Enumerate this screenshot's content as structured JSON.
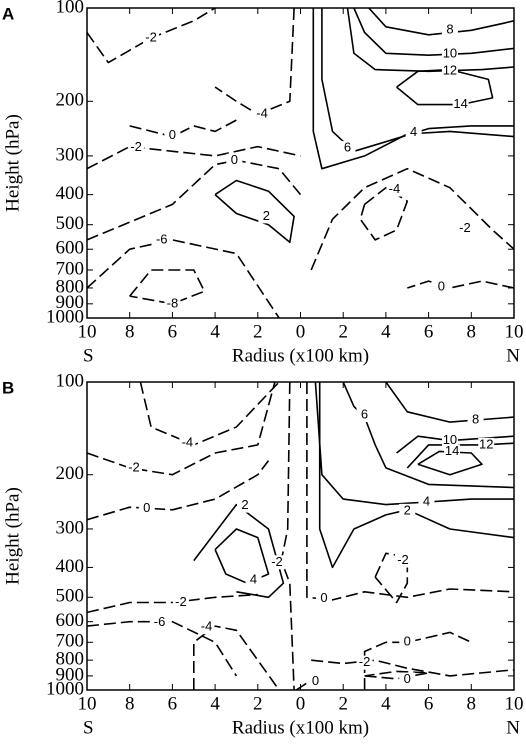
{
  "chart_data": [
    {
      "type": "contour",
      "panel_label": "A",
      "xlabel": "Radius (x100 km)",
      "ylabel": "Height (hPa)",
      "left_label": "S",
      "right_label": "N",
      "xlim": [
        -10,
        10
      ],
      "xticks": [
        {
          "value": -10,
          "label": "10"
        },
        {
          "value": -8,
          "label": "8"
        },
        {
          "value": -6,
          "label": "6"
        },
        {
          "value": -4,
          "label": "4"
        },
        {
          "value": -2,
          "label": "2"
        },
        0,
        2,
        4,
        6,
        8,
        10
      ],
      "ylim": [
        1000,
        100
      ],
      "ylog": true,
      "yticks": [
        100,
        200,
        300,
        400,
        500,
        600,
        700,
        800,
        900,
        1000
      ],
      "contour_labels": [
        8,
        10,
        12,
        14,
        6,
        4,
        -2,
        -4,
        0,
        -2,
        0,
        2,
        -4,
        -2,
        0,
        -6,
        -8
      ]
    },
    {
      "type": "contour",
      "panel_label": "B",
      "xlabel": "Radius (x100 km)",
      "ylabel": "Height (hPa)",
      "left_label": "S",
      "right_label": "N",
      "xlim": [
        -10,
        10
      ],
      "xticks": [
        {
          "value": -10,
          "label": "10"
        },
        {
          "value": -8,
          "label": "8"
        },
        {
          "value": -6,
          "label": "6"
        },
        {
          "value": -4,
          "label": "4"
        },
        {
          "value": -2,
          "label": "2"
        },
        0,
        2,
        4,
        6,
        8,
        10
      ],
      "ylim": [
        1000,
        100
      ],
      "ylog": true,
      "yticks": [
        100,
        200,
        300,
        400,
        500,
        600,
        700,
        800,
        900,
        1000
      ],
      "contour_labels": [
        6,
        8,
        10,
        12,
        14,
        4,
        2,
        -4,
        -2,
        0,
        2,
        4,
        -2,
        0,
        -2,
        -2,
        -6,
        -4,
        0,
        -2,
        0,
        0
      ]
    }
  ]
}
